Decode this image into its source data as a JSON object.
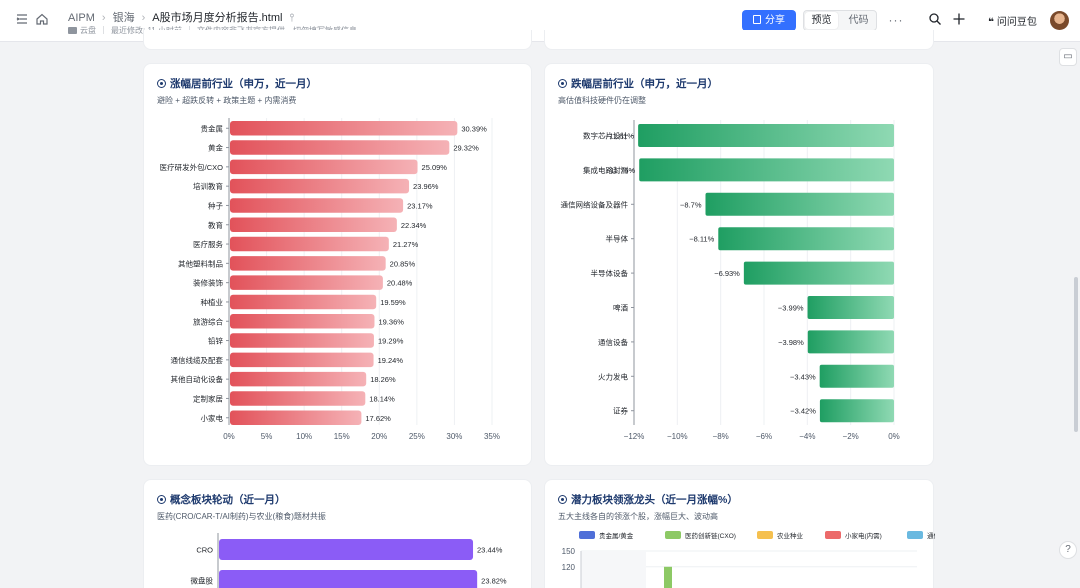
{
  "topbar": {
    "breadcrumbs": [
      "AIPM",
      "银海",
      "A股市场月度分析报告.html"
    ],
    "location": "云盘",
    "last_modified": "最近修改: 11 小时前",
    "notice": "文件内容非飞书官方提供，切勿填写敏感信息",
    "share_label": "分享",
    "preview_label": "预览",
    "code_label": "代码",
    "user_label": "问问豆包",
    "more_label": "···"
  },
  "cards": {
    "top_gainers": {
      "title": "涨幅居前行业（申万，近一月）",
      "subtitle": "避险 + 超跌反转 + 政策主题 + 内需消费"
    },
    "top_losers": {
      "title": "跌幅居前行业（申万，近一月）",
      "subtitle": "高估值科技硬件仍在调整"
    },
    "concept": {
      "title": "概念板块轮动（近一月）",
      "subtitle": "医药(CRO/CAR-T/AI制药)与农业(粮食)题材共振"
    },
    "leaders": {
      "title": "潜力板块领涨龙头（近一月涨幅%）",
      "subtitle": "五大主线各自的领涨个股，涨幅巨大、波动高"
    }
  },
  "chart_data": [
    {
      "type": "bar",
      "orientation": "horizontal",
      "categories": [
        "贵金属",
        "黄金",
        "医疗研发外包/CXO",
        "培训教育",
        "种子",
        "教育",
        "医疗服务",
        "其他塑料制品",
        "装修装饰",
        "种植业",
        "旅游综合",
        "铅锌",
        "通信线缆及配套",
        "其他自动化设备",
        "定制家居",
        "小家电"
      ],
      "values": [
        30.39,
        29.32,
        25.09,
        23.96,
        23.17,
        22.34,
        21.27,
        20.85,
        20.48,
        19.59,
        19.36,
        19.29,
        19.24,
        18.26,
        18.14,
        17.62
      ],
      "value_labels": [
        "30.39%",
        "29.32%",
        "25.09%",
        "23.96%",
        "23.17%",
        "22.34%",
        "21.27%",
        "20.85%",
        "20.48%",
        "19.59%",
        "19.36%",
        "19.29%",
        "19.24%",
        "18.26%",
        "18.14%",
        "17.62%"
      ],
      "xlim": [
        0,
        35
      ],
      "x_ticks": [
        "0%",
        "5%",
        "10%",
        "15%",
        "20%",
        "25%",
        "30%",
        "35%"
      ],
      "colors": {
        "start": "#e2525a",
        "end": "#f5b2b6"
      }
    },
    {
      "type": "bar",
      "orientation": "horizontal",
      "categories": [
        "数字芯片设计",
        "集成电路封测",
        "通信网络设备及器件",
        "半导体",
        "半导体设备",
        "啤酒",
        "通信设备",
        "火力发电",
        "证券"
      ],
      "values": [
        -11.81,
        -11.76,
        -8.7,
        -8.11,
        -6.93,
        -3.99,
        -3.98,
        -3.43,
        -3.42
      ],
      "value_labels": [
        "−11.81%",
        "−11.76%",
        "−8.7%",
        "−8.11%",
        "−6.93%",
        "−3.99%",
        "−3.98%",
        "−3.43%",
        "−3.42%"
      ],
      "xlim": [
        -12,
        0
      ],
      "x_ticks": [
        "−12%",
        "−10%",
        "−8%",
        "−6%",
        "−4%",
        "−2%",
        "0%"
      ],
      "colors": {
        "start": "#1f9e62",
        "end": "#8fd9b3"
      }
    },
    {
      "type": "bar",
      "orientation": "horizontal",
      "categories": [
        "CRO",
        "微盘股"
      ],
      "values": [
        23.44,
        23.82
      ],
      "value_labels": [
        "23.44%",
        "23.82%"
      ],
      "xlim": [
        0,
        25
      ],
      "colors": {
        "bar": "#8b5cf6"
      }
    },
    {
      "type": "bar",
      "legend": [
        "贵金属/黄金",
        "医药创新链(CXO)",
        "农业种业",
        "小家电(内需)",
        "通信线缆/算力"
      ],
      "legend_colors": [
        "#4f6fd8",
        "#8dc965",
        "#f5c04f",
        "#ec6a6a",
        "#6ab9e0"
      ],
      "y_ticks": [
        "150",
        "120"
      ],
      "ylim": [
        0,
        150
      ],
      "visible_bars": [
        {
          "series": "医药创新链(CXO)",
          "value": 120
        }
      ]
    }
  ]
}
